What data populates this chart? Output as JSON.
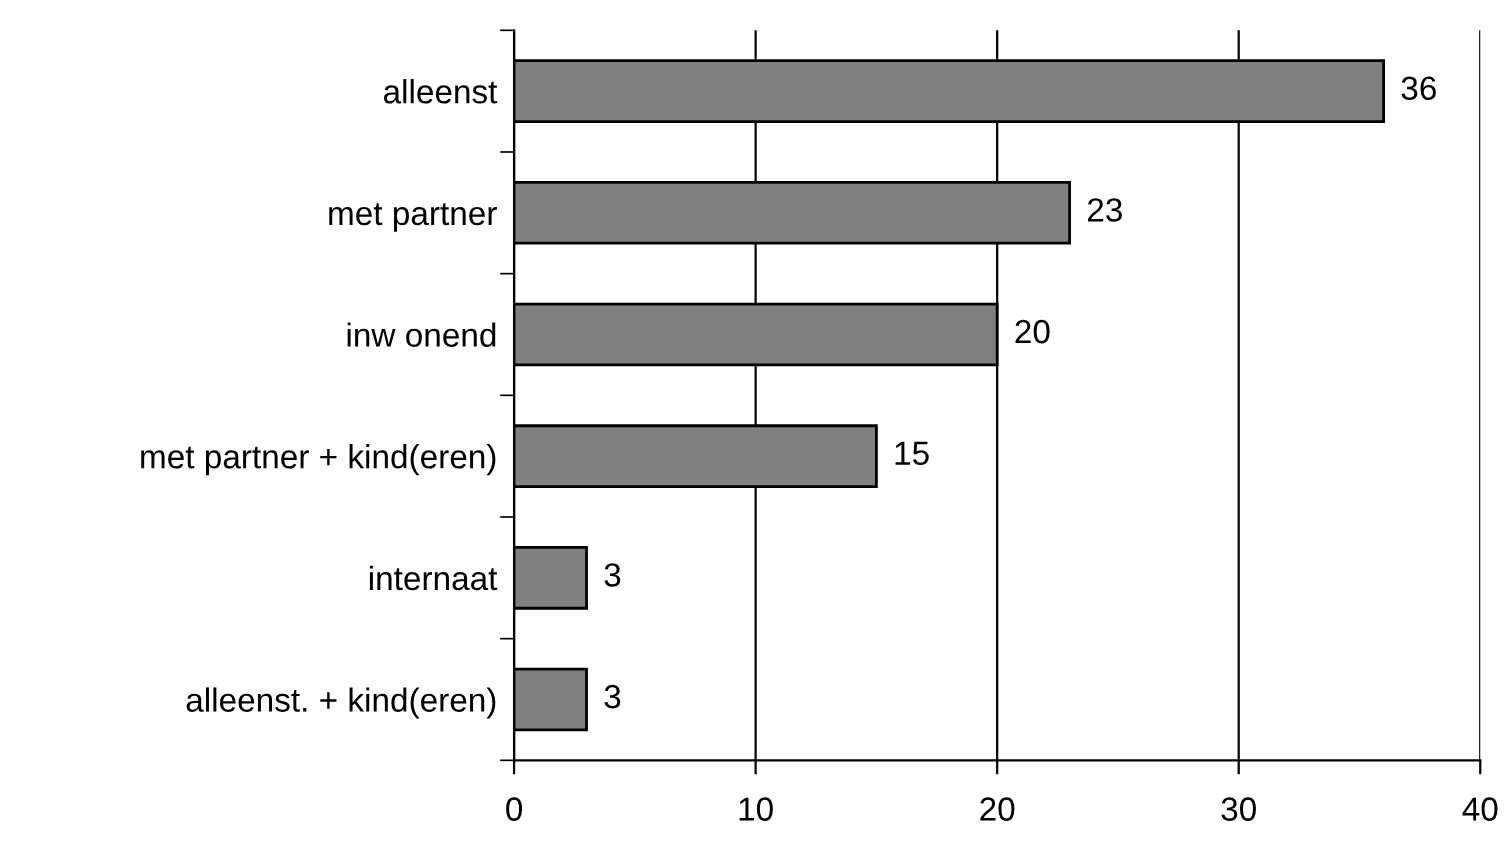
{
  "chart_data": {
    "type": "bar",
    "orientation": "horizontal",
    "categories": [
      "alleenst",
      "met partner",
      "inw onend",
      "met partner + kind(eren)",
      "internaat",
      "alleenst. + kind(eren)"
    ],
    "values": [
      36,
      23,
      20,
      15,
      3,
      3
    ],
    "color": "#808080",
    "xlim": [
      0,
      40
    ],
    "xticks": [
      0,
      10,
      20,
      30,
      40
    ],
    "grid": "x",
    "data_labels": true
  }
}
